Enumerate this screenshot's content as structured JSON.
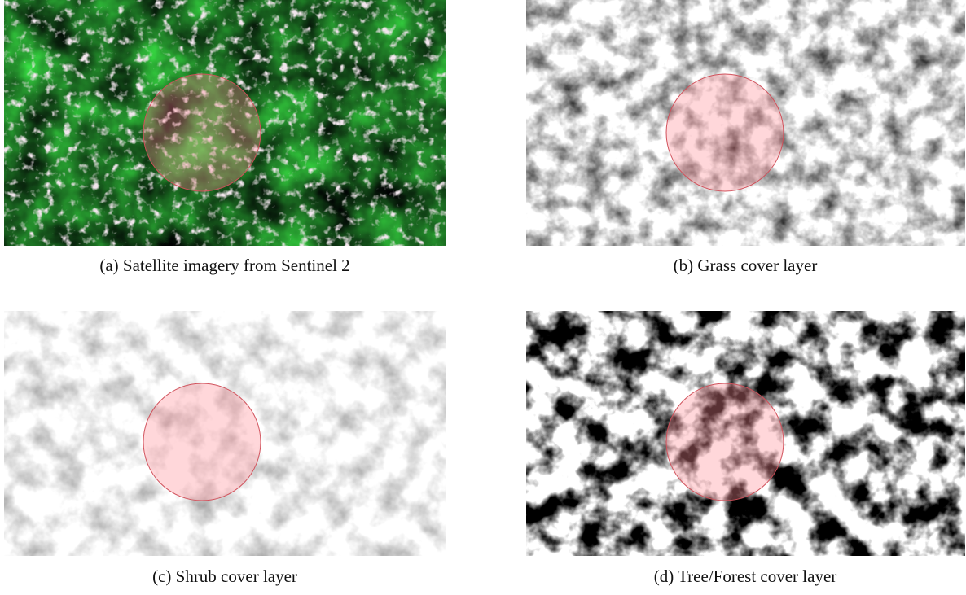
{
  "figure": {
    "panels": [
      {
        "caption": "(a) Satellite imagery from Sentinel 2"
      },
      {
        "caption": "(b) Grass cover layer"
      },
      {
        "caption": "(c) Shrub cover layer"
      },
      {
        "caption": "(d) Tree/Forest cover layer"
      }
    ]
  }
}
